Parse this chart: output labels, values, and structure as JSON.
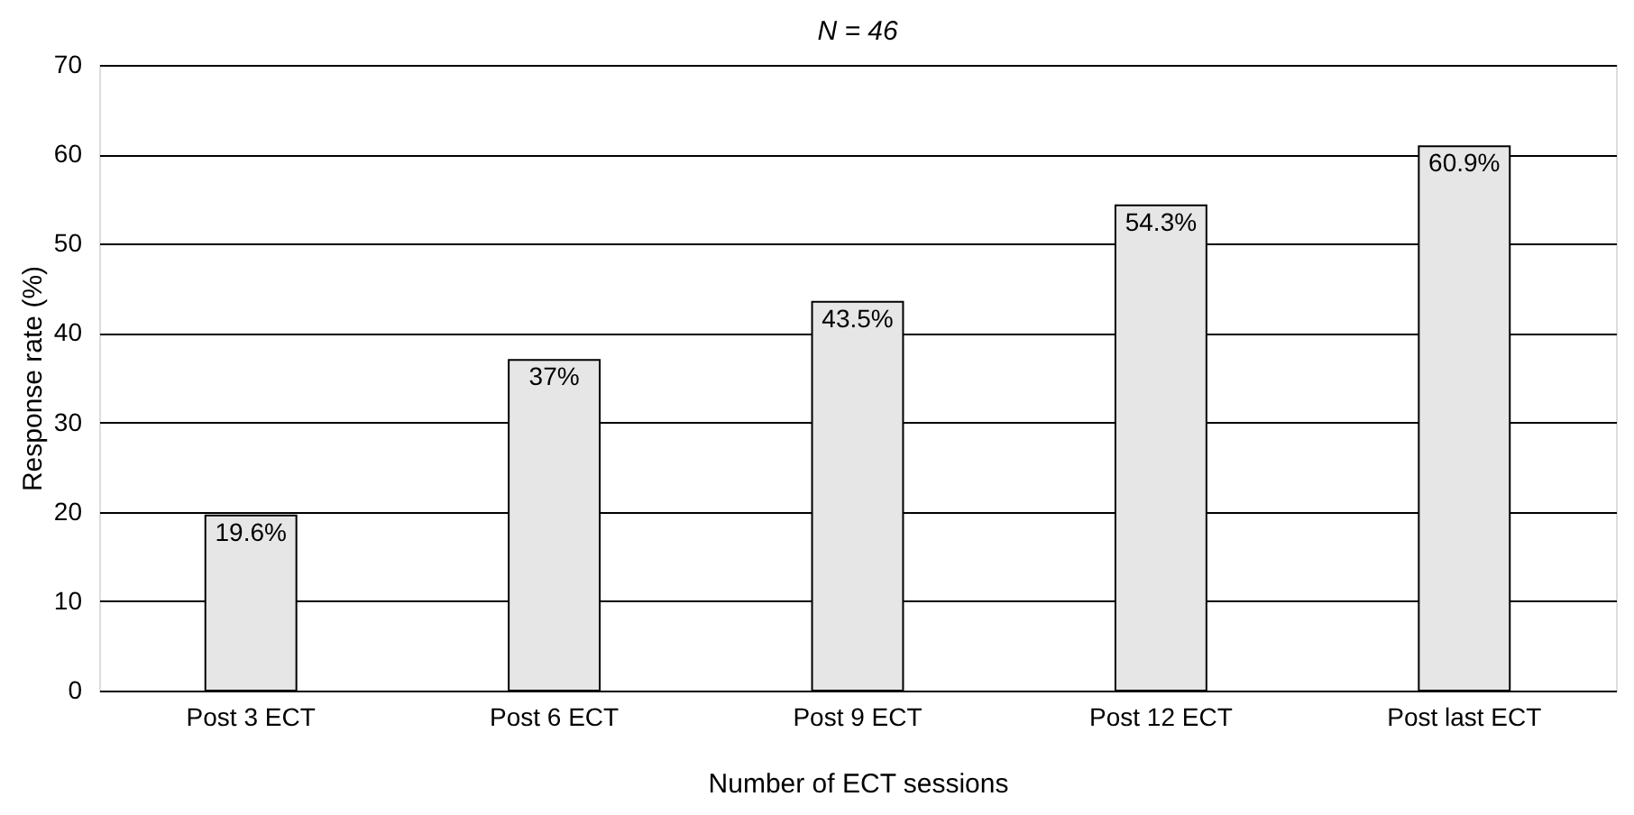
{
  "chart_data": {
    "type": "bar",
    "title": "N = 46",
    "xlabel": "Number of ECT sessions",
    "ylabel": "Response rate (%)",
    "categories": [
      "Post 3 ECT",
      "Post 6 ECT",
      "Post 9 ECT",
      "Post 12 ECT",
      "Post last ECT"
    ],
    "values": [
      19.6,
      37,
      43.5,
      54.3,
      60.9
    ],
    "value_labels": [
      "19.6%",
      "37%",
      "43.5%",
      "54.3%",
      "60.9%"
    ],
    "color": "#e6e6e6",
    "ylim": [
      0,
      70
    ],
    "yticks": [
      0,
      10,
      20,
      30,
      40,
      50,
      60,
      70
    ],
    "grid": "y"
  }
}
